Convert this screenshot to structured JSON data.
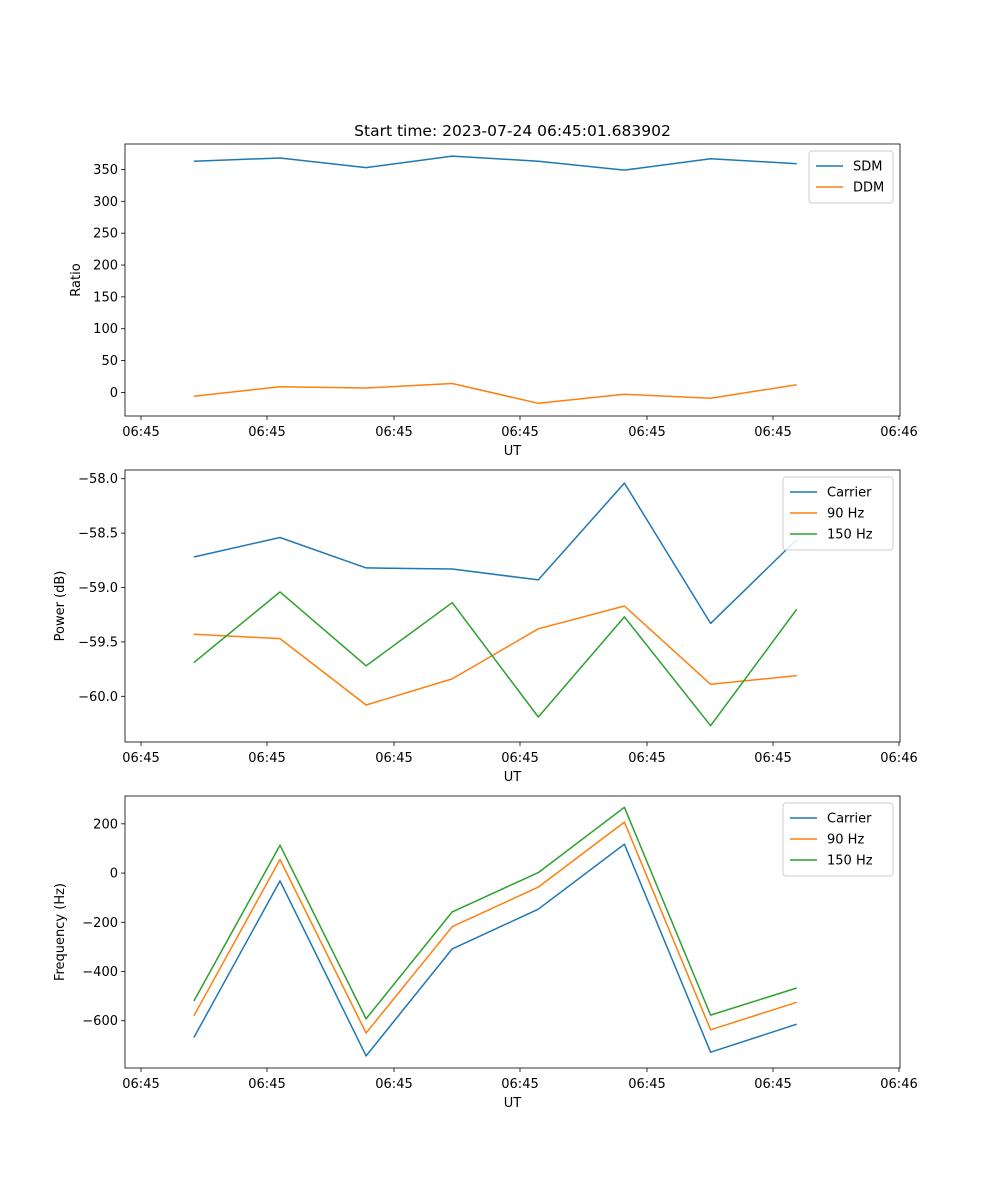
{
  "chart_data": [
    {
      "type": "line",
      "title": "Start time: 2023-07-24 06:45:01.683902",
      "xlabel": "UT",
      "ylabel": "Ratio",
      "x_tick_labels": [
        "06:45",
        "06:45",
        "06:45",
        "06:45",
        "06:45",
        "06:45",
        "06:46"
      ],
      "x": [
        1,
        2,
        3,
        4,
        5,
        6,
        7,
        8
      ],
      "xlim": [
        0.2,
        9.2
      ],
      "ylim": [
        -37,
        390
      ],
      "yticks": [
        0,
        50,
        100,
        150,
        200,
        250,
        300,
        350
      ],
      "legend_position": "upper right",
      "series": [
        {
          "name": "SDM",
          "color": "#1f77b4",
          "values": [
            363,
            368,
            353,
            371,
            363,
            349,
            367,
            359
          ]
        },
        {
          "name": "DDM",
          "color": "#ff7f0e",
          "values": [
            -6,
            9,
            7,
            14,
            -17,
            -3,
            -9,
            12
          ]
        }
      ]
    },
    {
      "type": "line",
      "title": "",
      "xlabel": "UT",
      "ylabel": "Power (dB)",
      "x_tick_labels": [
        "06:45",
        "06:45",
        "06:45",
        "06:45",
        "06:45",
        "06:45",
        "06:46"
      ],
      "x": [
        1,
        2,
        3,
        4,
        5,
        6,
        7,
        8
      ],
      "xlim": [
        0.2,
        9.2
      ],
      "ylim": [
        -60.42,
        -57.92
      ],
      "yticks": [
        -60.0,
        -59.5,
        -59.0,
        -58.5,
        -58.0
      ],
      "legend_position": "upper right",
      "series": [
        {
          "name": "Carrier",
          "color": "#1f77b4",
          "values": [
            -58.72,
            -58.54,
            -58.82,
            -58.83,
            -58.93,
            -58.04,
            -59.33,
            -58.56
          ]
        },
        {
          "name": "90 Hz",
          "color": "#ff7f0e",
          "values": [
            -59.43,
            -59.47,
            -60.08,
            -59.84,
            -59.38,
            -59.17,
            -59.89,
            -59.81
          ]
        },
        {
          "name": "150 Hz",
          "color": "#2ca02c",
          "values": [
            -59.69,
            -59.04,
            -59.72,
            -59.14,
            -60.19,
            -59.27,
            -60.27,
            -59.2
          ]
        }
      ]
    },
    {
      "type": "line",
      "title": "",
      "xlabel": "UT",
      "ylabel": "Frequency (Hz)",
      "x_tick_labels": [
        "06:45",
        "06:45",
        "06:45",
        "06:45",
        "06:45",
        "06:45",
        "06:46"
      ],
      "x": [
        1,
        2,
        3,
        4,
        5,
        6,
        7,
        8
      ],
      "xlim": [
        0.2,
        9.2
      ],
      "ylim": [
        -792,
        313
      ],
      "yticks": [
        -600,
        -400,
        -200,
        0,
        200
      ],
      "legend_position": "upper right",
      "series": [
        {
          "name": "Carrier",
          "color": "#1f77b4",
          "values": [
            -668,
            -32,
            -743,
            -308,
            -147,
            117,
            -728,
            -614
          ]
        },
        {
          "name": "90 Hz",
          "color": "#ff7f0e",
          "values": [
            -580,
            55,
            -650,
            -218,
            -57,
            207,
            -637,
            -525
          ]
        },
        {
          "name": "150 Hz",
          "color": "#2ca02c",
          "values": [
            -520,
            113,
            -592,
            -158,
            2,
            267,
            -577,
            -467
          ]
        }
      ]
    }
  ]
}
